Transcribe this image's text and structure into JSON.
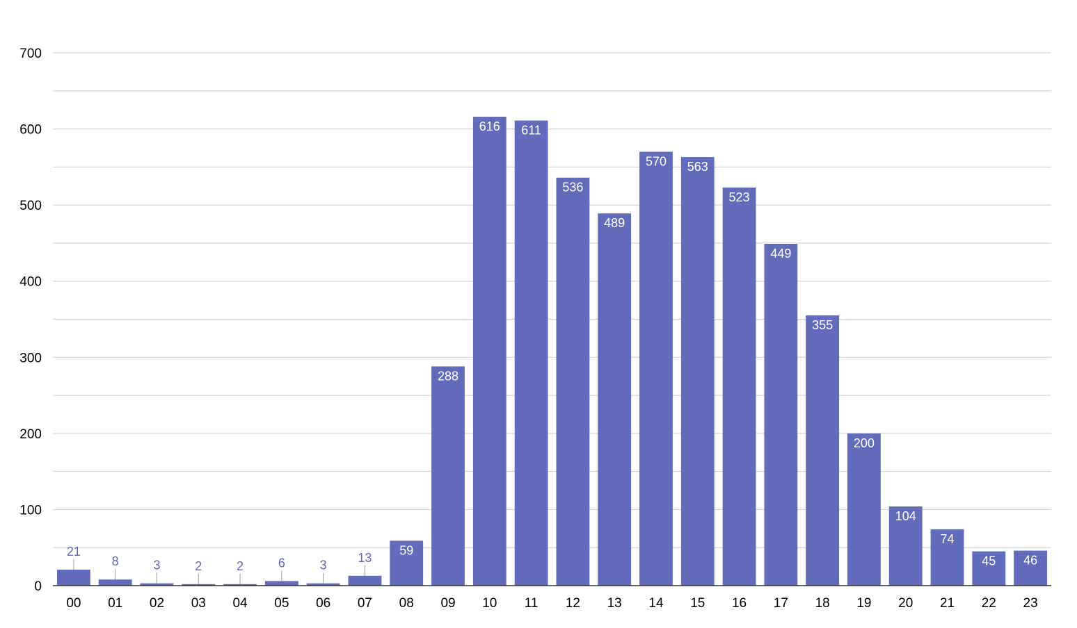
{
  "chart_data": {
    "type": "bar",
    "title": "",
    "xlabel": "",
    "ylabel": "",
    "categories": [
      "00",
      "01",
      "02",
      "03",
      "04",
      "05",
      "06",
      "07",
      "08",
      "09",
      "10",
      "11",
      "12",
      "13",
      "14",
      "15",
      "16",
      "17",
      "18",
      "19",
      "20",
      "21",
      "22",
      "23"
    ],
    "values": [
      21,
      8,
      3,
      2,
      2,
      6,
      3,
      13,
      59,
      288,
      616,
      611,
      536,
      489,
      570,
      563,
      523,
      449,
      355,
      200,
      104,
      74,
      45,
      46
    ],
    "ylim": [
      0,
      700
    ],
    "yticks": [
      "0",
      "100",
      "200",
      "300",
      "400",
      "500",
      "600",
      "700"
    ],
    "grid": true,
    "minor_grid": true,
    "legend": "none",
    "colors": {
      "bar": "#636bbb",
      "grid": "#cccccc",
      "axis": "#333333",
      "label_inside": "#ffffff",
      "label_outside": "#6068bb"
    }
  }
}
